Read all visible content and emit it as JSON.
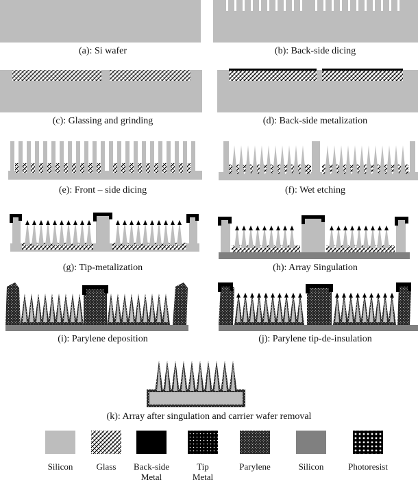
{
  "panels": [
    {
      "id": "a",
      "caption": "(a): Si wafer"
    },
    {
      "id": "b",
      "caption": "(b): Back-side dicing"
    },
    {
      "id": "c",
      "caption": "(c): Glassing and grinding"
    },
    {
      "id": "d",
      "caption": "(d): Back-side metalization"
    },
    {
      "id": "e",
      "caption": "(e): Front – side dicing"
    },
    {
      "id": "f",
      "caption": "(f): Wet etching"
    },
    {
      "id": "g",
      "caption": "(g): Tip-metalization"
    },
    {
      "id": "h",
      "caption": "(h): Array Singulation"
    },
    {
      "id": "i",
      "caption": "(i): Parylene deposition"
    },
    {
      "id": "j",
      "caption": "(j): Parylene tip-de-insulation"
    },
    {
      "id": "k",
      "caption": "(k): Array after singulation and carrier wafer removal"
    }
  ],
  "legend": [
    {
      "label": "Silicon",
      "swatch": "silicon-light"
    },
    {
      "label": "Glass",
      "swatch": "glass"
    },
    {
      "label": "Back-side\nMetal",
      "swatch": "backside-metal"
    },
    {
      "label": "Tip\nMetal",
      "swatch": "tip-metal"
    },
    {
      "label": "Parylene",
      "swatch": "parylene"
    },
    {
      "label": "Silicon",
      "swatch": "silicon-dark"
    },
    {
      "label": "Photoresist",
      "swatch": "photoresist"
    }
  ],
  "colors": {
    "silicon_light": "#bdbdbd",
    "silicon_dark": "#808080",
    "metal": "#000000",
    "parylene": "#3a3a3a"
  }
}
